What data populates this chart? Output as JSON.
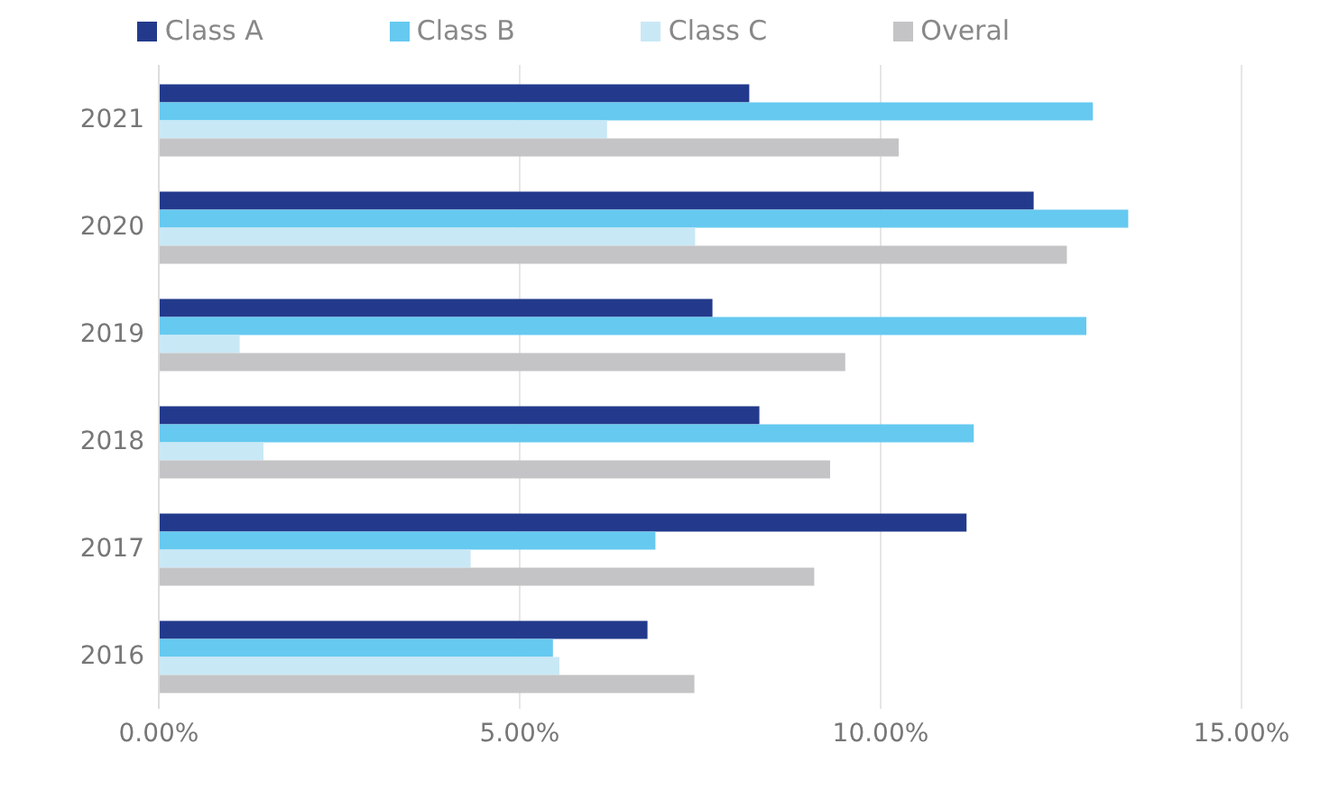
{
  "chart_data": {
    "type": "bar",
    "orientation": "horizontal",
    "categories": [
      "2021",
      "2020",
      "2019",
      "2018",
      "2017",
      "2016"
    ],
    "series": [
      {
        "name": "Class A",
        "color": "#233a8c",
        "values": [
          8.18,
          12.12,
          7.67,
          8.32,
          11.19,
          6.77
        ]
      },
      {
        "name": "Class B",
        "color": "#66c9f0",
        "values": [
          12.94,
          13.43,
          12.85,
          11.29,
          6.88,
          5.46
        ]
      },
      {
        "name": "Class C",
        "color": "#c9e8f6",
        "values": [
          6.21,
          7.43,
          1.12,
          1.45,
          4.32,
          5.55
        ]
      },
      {
        "name": "Overal",
        "color": "#c4c4c6",
        "values": [
          10.25,
          12.58,
          9.51,
          9.3,
          9.08,
          7.42
        ]
      }
    ],
    "xlim": [
      0,
      15
    ],
    "xticks": [
      {
        "value": 0,
        "label": "0.00%"
      },
      {
        "value": 5,
        "label": "5.00%"
      },
      {
        "value": 10,
        "label": "10.00%"
      },
      {
        "value": 15,
        "label": "15.00%"
      }
    ],
    "grid": "x",
    "legend": "top"
  }
}
